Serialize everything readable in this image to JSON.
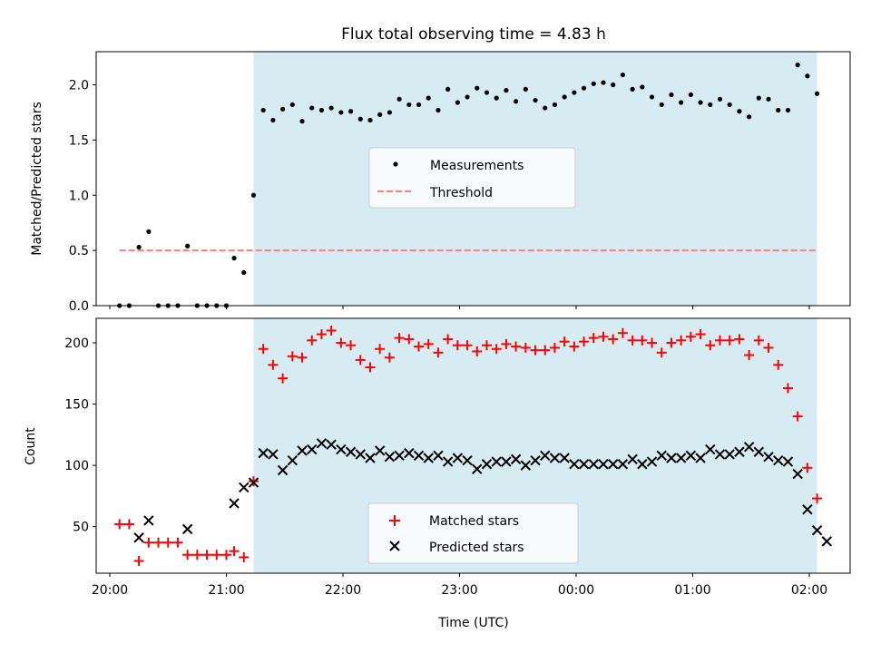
{
  "chart_data": [
    {
      "type": "scatter",
      "title": "Flux total observing time = 4.83 h",
      "xlabel": "",
      "ylabel": "Matched/Predicted stars",
      "ylim": [
        0,
        2.3
      ],
      "y_ticks": [
        0.0,
        0.5,
        1.0,
        1.5,
        2.0
      ],
      "y_tick_labels": [
        "0.0",
        "0.5",
        "1.0",
        "1.5",
        "2.0"
      ],
      "shaded_region": {
        "x_start": "21:14",
        "x_end": "02:04",
        "color": "#add8e6"
      },
      "threshold": {
        "name": "Threshold",
        "value": 0.5,
        "x_start": "20:05",
        "x_end": "02:04",
        "color": "#ff7f7f"
      },
      "legend": {
        "position": "center",
        "entries": [
          "Measurements",
          "Threshold"
        ]
      },
      "series": [
        {
          "name": "Measurements",
          "color": "#000000",
          "points": [
            [
              "20:05",
              0.0
            ],
            [
              "20:10",
              0.0
            ],
            [
              "20:15",
              0.53
            ],
            [
              "20:20",
              0.67
            ],
            [
              "20:25",
              0.0
            ],
            [
              "20:30",
              0.0
            ],
            [
              "20:35",
              0.0
            ],
            [
              "20:40",
              0.54
            ],
            [
              "20:45",
              0.0
            ],
            [
              "20:50",
              0.0
            ],
            [
              "20:55",
              0.0
            ],
            [
              "21:00",
              0.0
            ],
            [
              "21:04",
              0.43
            ],
            [
              "21:09",
              0.3
            ],
            [
              "21:14",
              1.0
            ],
            [
              "21:19",
              1.77
            ],
            [
              "21:24",
              1.68
            ],
            [
              "21:29",
              1.78
            ],
            [
              "21:34",
              1.82
            ],
            [
              "21:39",
              1.67
            ],
            [
              "21:44",
              1.79
            ],
            [
              "21:49",
              1.77
            ],
            [
              "21:54",
              1.79
            ],
            [
              "21:59",
              1.75
            ],
            [
              "22:04",
              1.76
            ],
            [
              "22:09",
              1.69
            ],
            [
              "22:14",
              1.68
            ],
            [
              "22:19",
              1.73
            ],
            [
              "22:24",
              1.75
            ],
            [
              "22:29",
              1.87
            ],
            [
              "22:34",
              1.82
            ],
            [
              "22:39",
              1.82
            ],
            [
              "22:44",
              1.88
            ],
            [
              "22:49",
              1.77
            ],
            [
              "22:54",
              1.96
            ],
            [
              "22:59",
              1.84
            ],
            [
              "23:04",
              1.89
            ],
            [
              "23:09",
              1.97
            ],
            [
              "23:14",
              1.93
            ],
            [
              "23:19",
              1.88
            ],
            [
              "23:24",
              1.95
            ],
            [
              "23:29",
              1.85
            ],
            [
              "23:34",
              1.96
            ],
            [
              "23:39",
              1.86
            ],
            [
              "23:44",
              1.79
            ],
            [
              "23:49",
              1.82
            ],
            [
              "23:54",
              1.89
            ],
            [
              "23:59",
              1.93
            ],
            [
              "00:04",
              1.97
            ],
            [
              "00:09",
              2.01
            ],
            [
              "00:14",
              2.02
            ],
            [
              "00:19",
              2.0
            ],
            [
              "00:24",
              2.09
            ],
            [
              "00:29",
              1.96
            ],
            [
              "00:34",
              1.98
            ],
            [
              "00:39",
              1.89
            ],
            [
              "00:44",
              1.82
            ],
            [
              "00:49",
              1.91
            ],
            [
              "00:54",
              1.84
            ],
            [
              "00:59",
              1.91
            ],
            [
              "01:04",
              1.84
            ],
            [
              "01:09",
              1.82
            ],
            [
              "01:14",
              1.87
            ],
            [
              "01:19",
              1.82
            ],
            [
              "01:24",
              1.76
            ],
            [
              "01:29",
              1.71
            ],
            [
              "01:34",
              1.88
            ],
            [
              "01:39",
              1.87
            ],
            [
              "01:44",
              1.77
            ],
            [
              "01:49",
              1.77
            ],
            [
              "01:54",
              2.18
            ],
            [
              "01:59",
              2.08
            ],
            [
              "02:04",
              1.92
            ]
          ]
        }
      ]
    },
    {
      "type": "scatter",
      "title": "",
      "xlabel": "Time (UTC)",
      "ylabel": "Count",
      "ylim": [
        12,
        220
      ],
      "y_ticks": [
        50,
        100,
        150,
        200
      ],
      "y_tick_labels": [
        "50",
        "100",
        "150",
        "200"
      ],
      "x_ticks": [
        "20:00",
        "21:00",
        "22:00",
        "23:00",
        "00:00",
        "01:00",
        "02:00"
      ],
      "x_range": [
        "19:53",
        "02:21"
      ],
      "shaded_region": {
        "x_start": "21:14",
        "x_end": "02:04",
        "color": "#add8e6"
      },
      "legend": {
        "position": "center",
        "entries": [
          "Matched stars",
          "Predicted stars"
        ]
      },
      "series": [
        {
          "name": "Matched stars",
          "color": "#ff0000",
          "marker": "+",
          "points": [
            [
              "20:05",
              52
            ],
            [
              "20:10",
              52
            ],
            [
              "20:15",
              22
            ],
            [
              "20:20",
              37
            ],
            [
              "20:25",
              37
            ],
            [
              "20:30",
              37
            ],
            [
              "20:35",
              37
            ],
            [
              "20:40",
              27
            ],
            [
              "20:45",
              27
            ],
            [
              "20:50",
              27
            ],
            [
              "20:55",
              27
            ],
            [
              "21:00",
              27
            ],
            [
              "21:04",
              30
            ],
            [
              "21:09",
              25
            ],
            [
              "21:14",
              87
            ],
            [
              "21:19",
              195
            ],
            [
              "21:24",
              182
            ],
            [
              "21:29",
              171
            ],
            [
              "21:34",
              189
            ],
            [
              "21:39",
              188
            ],
            [
              "21:44",
              202
            ],
            [
              "21:49",
              207
            ],
            [
              "21:54",
              210
            ],
            [
              "21:59",
              200
            ],
            [
              "22:04",
              198
            ],
            [
              "22:09",
              186
            ],
            [
              "22:14",
              180
            ],
            [
              "22:19",
              195
            ],
            [
              "22:24",
              188
            ],
            [
              "22:29",
              204
            ],
            [
              "22:34",
              203
            ],
            [
              "22:39",
              197
            ],
            [
              "22:44",
              199
            ],
            [
              "22:49",
              192
            ],
            [
              "22:54",
              203
            ],
            [
              "22:59",
              198
            ],
            [
              "23:04",
              198
            ],
            [
              "23:09",
              193
            ],
            [
              "23:14",
              198
            ],
            [
              "23:19",
              195
            ],
            [
              "23:24",
              199
            ],
            [
              "23:29",
              197
            ],
            [
              "23:34",
              196
            ],
            [
              "23:39",
              194
            ],
            [
              "23:44",
              194
            ],
            [
              "23:49",
              196
            ],
            [
              "23:54",
              201
            ],
            [
              "23:59",
              197
            ],
            [
              "00:04",
              201
            ],
            [
              "00:09",
              204
            ],
            [
              "00:14",
              205
            ],
            [
              "00:19",
              203
            ],
            [
              "00:24",
              208
            ],
            [
              "00:29",
              202
            ],
            [
              "00:34",
              202
            ],
            [
              "00:39",
              200
            ],
            [
              "00:44",
              192
            ],
            [
              "00:49",
              200
            ],
            [
              "00:54",
              202
            ],
            [
              "00:59",
              205
            ],
            [
              "01:04",
              207
            ],
            [
              "01:09",
              198
            ],
            [
              "01:14",
              202
            ],
            [
              "01:19",
              202
            ],
            [
              "01:24",
              203
            ],
            [
              "01:29",
              190
            ],
            [
              "01:34",
              202
            ],
            [
              "01:39",
              196
            ],
            [
              "01:44",
              182
            ],
            [
              "01:49",
              163
            ],
            [
              "01:54",
              140
            ],
            [
              "01:59",
              98
            ],
            [
              "02:04",
              73
            ]
          ]
        },
        {
          "name": "Predicted stars",
          "color": "#000000",
          "marker": "x",
          "points": [
            [
              "20:15",
              41
            ],
            [
              "20:20",
              55
            ],
            [
              "20:40",
              48
            ],
            [
              "21:04",
              69
            ],
            [
              "21:09",
              82
            ],
            [
              "21:14",
              86
            ],
            [
              "21:19",
              110
            ],
            [
              "21:24",
              109
            ],
            [
              "21:29",
              96
            ],
            [
              "21:34",
              104
            ],
            [
              "21:39",
              112
            ],
            [
              "21:44",
              113
            ],
            [
              "21:49",
              118
            ],
            [
              "21:54",
              117
            ],
            [
              "21:59",
              113
            ],
            [
              "22:04",
              111
            ],
            [
              "22:09",
              109
            ],
            [
              "22:14",
              106
            ],
            [
              "22:19",
              112
            ],
            [
              "22:24",
              107
            ],
            [
              "22:29",
              108
            ],
            [
              "22:34",
              110
            ],
            [
              "22:39",
              108
            ],
            [
              "22:44",
              106
            ],
            [
              "22:49",
              108
            ],
            [
              "22:54",
              103
            ],
            [
              "22:59",
              106
            ],
            [
              "23:04",
              104
            ],
            [
              "23:09",
              97
            ],
            [
              "23:14",
              101
            ],
            [
              "23:19",
              103
            ],
            [
              "23:24",
              103
            ],
            [
              "23:29",
              105
            ],
            [
              "23:34",
              100
            ],
            [
              "23:39",
              104
            ],
            [
              "23:44",
              108
            ],
            [
              "23:49",
              106
            ],
            [
              "23:54",
              106
            ],
            [
              "23:59",
              101
            ],
            [
              "00:04",
              101
            ],
            [
              "00:09",
              101
            ],
            [
              "00:14",
              101
            ],
            [
              "00:19",
              101
            ],
            [
              "00:24",
              101
            ],
            [
              "00:29",
              105
            ],
            [
              "00:34",
              101
            ],
            [
              "00:39",
              103
            ],
            [
              "00:44",
              108
            ],
            [
              "00:49",
              106
            ],
            [
              "00:54",
              106
            ],
            [
              "00:59",
              108
            ],
            [
              "01:04",
              106
            ],
            [
              "01:09",
              113
            ],
            [
              "01:14",
              109
            ],
            [
              "01:19",
              109
            ],
            [
              "01:24",
              111
            ],
            [
              "01:29",
              115
            ],
            [
              "01:34",
              111
            ],
            [
              "01:39",
              107
            ],
            [
              "01:44",
              104
            ],
            [
              "01:49",
              103
            ],
            [
              "01:54",
              93
            ],
            [
              "01:59",
              64
            ],
            [
              "02:04",
              47
            ],
            [
              "02:09",
              38
            ]
          ]
        }
      ]
    }
  ]
}
